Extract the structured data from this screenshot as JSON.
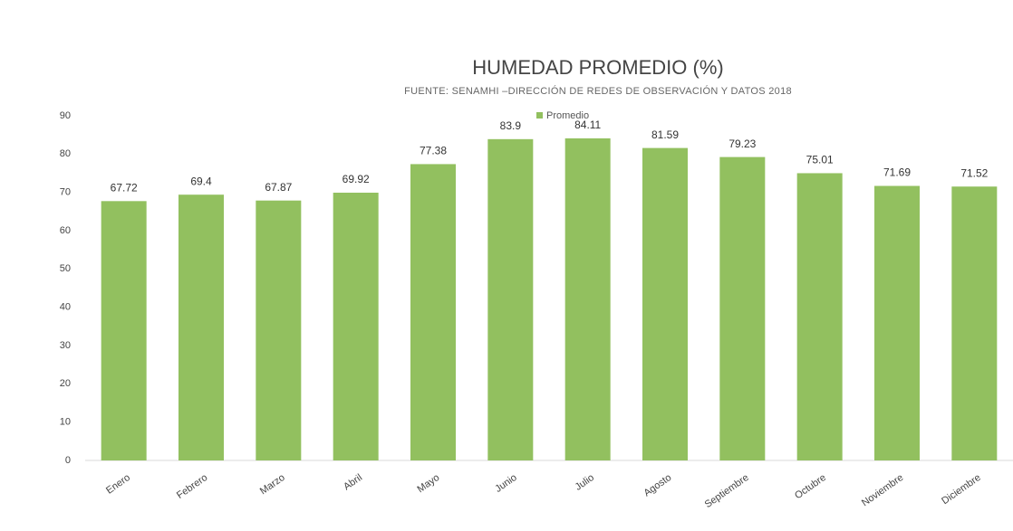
{
  "chart_data": {
    "type": "bar",
    "title": "HUMEDAD PROMEDIO (%)",
    "subtitle": "FUENTE: SENAMHI –DIRECCIÓN DE REDES DE OBSERVACIÓN Y DATOS 2018",
    "categories": [
      "Enero",
      "Febrero",
      "Marzo",
      "Abril",
      "Mayo",
      "Junio",
      "Julio",
      "Agosto",
      "Septiembre",
      "Octubre",
      "Noviembre",
      "Diciembre"
    ],
    "series": [
      {
        "name": "Promedio",
        "color": "#92c05f",
        "values": [
          67.72,
          69.4,
          67.87,
          69.92,
          77.38,
          83.9,
          84.11,
          81.59,
          79.23,
          75.01,
          71.69,
          71.52
        ]
      }
    ],
    "ylim": [
      0,
      90
    ],
    "yticks": [
      0,
      10,
      20,
      30,
      40,
      50,
      60,
      70,
      80,
      90
    ],
    "legend": "top"
  }
}
